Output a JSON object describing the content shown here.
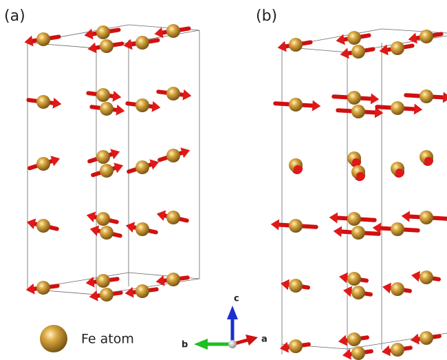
{
  "panels": [
    {
      "label": "(a)"
    },
    {
      "label": "(b)"
    }
  ],
  "legend": {
    "label": "Fe atom"
  },
  "axes": [
    {
      "label": "c"
    },
    {
      "label": "b"
    },
    {
      "label": "a"
    }
  ]
}
